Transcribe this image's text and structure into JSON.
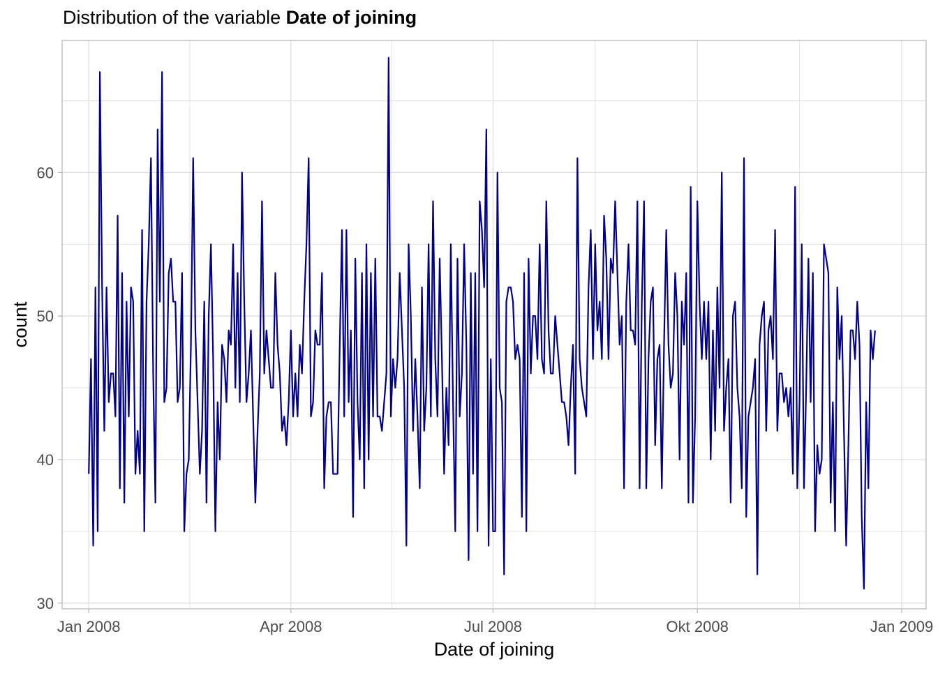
{
  "title_prefix": "Distribution of the variable ",
  "title_bold": "Date of joining",
  "colors": {
    "line": "#00008B",
    "grid": "#dcdcdc",
    "panel_border": "#b3b3b3",
    "tick_text": "#4d4d4d"
  },
  "chart_data": {
    "type": "line",
    "title": "Distribution of the variable Date of joining",
    "xlabel": "Date of joining",
    "ylabel": "count",
    "x_start": "2008-01-01",
    "x_end": "2008-12-31",
    "x_ticks": [
      {
        "date": "2008-01-01",
        "label": "Jan 2008"
      },
      {
        "date": "2008-04-01",
        "label": "Apr 2008"
      },
      {
        "date": "2008-07-01",
        "label": "Jul 2008"
      },
      {
        "date": "2008-10-01",
        "label": "Okt 2008"
      },
      {
        "date": "2009-01-01",
        "label": "Jan 2009"
      }
    ],
    "y_ticks": [
      30,
      40,
      50,
      60
    ],
    "ylim": [
      29.6,
      69.2
    ],
    "xlim": [
      "2007-12-20",
      "2009-01-12"
    ],
    "grid": true,
    "series": [
      {
        "values": [
          39,
          47,
          34,
          52,
          35,
          67,
          52,
          42,
          52,
          44,
          46,
          46,
          43,
          57,
          38,
          53,
          37,
          51,
          43,
          52,
          51,
          39,
          42,
          39,
          56,
          35,
          51,
          55,
          61,
          46,
          37,
          63,
          51,
          67,
          44,
          45,
          53,
          54,
          51,
          51,
          44,
          45,
          53,
          35,
          39,
          40,
          48,
          61,
          49,
          44,
          39,
          42,
          51,
          37,
          50,
          55,
          47,
          35,
          44,
          40,
          48,
          47,
          44,
          49,
          48,
          55,
          45,
          53,
          44,
          60,
          51,
          44,
          46,
          49,
          43,
          37,
          42,
          46,
          58,
          46,
          49,
          47,
          45,
          45,
          53,
          48,
          46,
          42,
          43,
          41,
          44,
          49,
          43,
          46,
          43,
          48,
          46,
          51,
          55,
          61,
          43,
          44,
          49,
          48,
          48,
          53,
          38,
          43,
          44,
          44,
          39,
          39,
          39,
          48,
          56,
          43,
          56,
          44,
          49,
          36,
          54,
          44,
          40,
          53,
          38,
          55,
          40,
          53,
          43,
          54,
          43,
          43,
          42,
          44,
          46,
          68,
          43,
          47,
          45,
          47,
          53,
          49,
          45,
          34,
          55,
          50,
          42,
          47,
          43,
          38,
          52,
          42,
          45,
          55,
          43,
          58,
          47,
          43,
          54,
          47,
          39,
          45,
          41,
          55,
          44,
          35,
          54,
          43,
          46,
          55,
          48,
          33,
          53,
          39,
          53,
          35,
          58,
          56,
          52,
          63,
          34,
          47,
          35,
          35,
          60,
          45,
          44,
          32,
          51,
          52,
          52,
          51,
          47,
          48,
          47,
          36,
          53,
          35,
          54,
          46,
          50,
          50,
          47,
          55,
          47,
          46,
          58,
          49,
          46,
          46,
          50,
          48,
          46,
          44,
          44,
          43,
          41,
          45,
          48,
          39,
          61,
          47,
          45,
          44,
          43,
          52,
          56,
          47,
          55,
          49,
          51,
          47,
          57,
          54,
          47,
          54,
          53,
          58,
          53,
          48,
          50,
          38,
          51,
          55,
          49,
          49,
          48,
          58,
          38,
          51,
          58,
          38,
          47,
          51,
          52,
          41,
          47,
          48,
          38,
          48,
          56,
          48,
          45,
          46,
          53,
          50,
          40,
          51,
          48,
          53,
          37,
          59,
          37,
          43,
          58,
          51,
          47,
          51,
          47,
          51,
          40,
          49,
          42,
          52,
          45,
          60,
          42,
          45,
          47,
          37,
          50,
          51,
          45,
          43,
          38,
          61,
          36,
          43,
          44,
          45,
          47,
          32,
          48,
          50,
          51,
          42,
          49,
          50,
          47,
          56,
          42,
          46,
          46,
          44,
          45,
          43,
          45,
          39,
          59,
          38,
          44,
          55,
          38,
          45,
          54,
          44,
          53,
          35,
          41,
          39,
          40,
          55,
          54,
          53,
          37,
          44,
          35,
          52,
          47,
          50,
          42,
          34,
          41,
          49,
          49,
          47,
          51,
          48,
          36,
          31,
          44,
          38,
          49,
          47,
          49
        ]
      }
    ]
  }
}
